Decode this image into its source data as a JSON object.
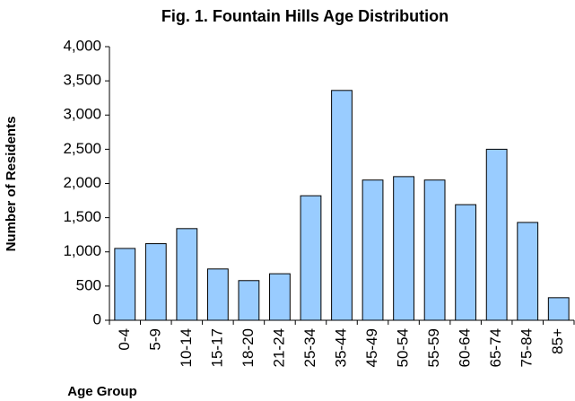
{
  "chart_data": {
    "type": "bar",
    "title": "Fig. 1. Fountain Hills Age Distribution",
    "y_label": "Number of Residents",
    "x_label": "Age Group",
    "categories": [
      "0-4",
      "5-9",
      "10-14",
      "15-17",
      "18-20",
      "21-24",
      "25-34",
      "35-44",
      "45-49",
      "50-54",
      "55-59",
      "60-64",
      "65-74",
      "75-84",
      "85+"
    ],
    "values": [
      1050,
      1120,
      1340,
      750,
      580,
      680,
      1820,
      3360,
      2050,
      2100,
      2050,
      1690,
      2500,
      1430,
      330
    ],
    "color": "#99ccff",
    "ylim": [
      0,
      4000
    ],
    "yticks": [
      0,
      500,
      {
        "value": 1000,
        "label": "1,000"
      },
      {
        "value": 1500,
        "label": "1,500"
      },
      {
        "value": 2000,
        "label": "2,000"
      },
      {
        "value": 2500,
        "label": "2,500"
      },
      {
        "value": 3000,
        "label": "3,000"
      },
      {
        "value": 3500,
        "label": "3,500"
      },
      {
        "value": 4000,
        "label": "4,000"
      }
    ],
    "grid": false
  }
}
